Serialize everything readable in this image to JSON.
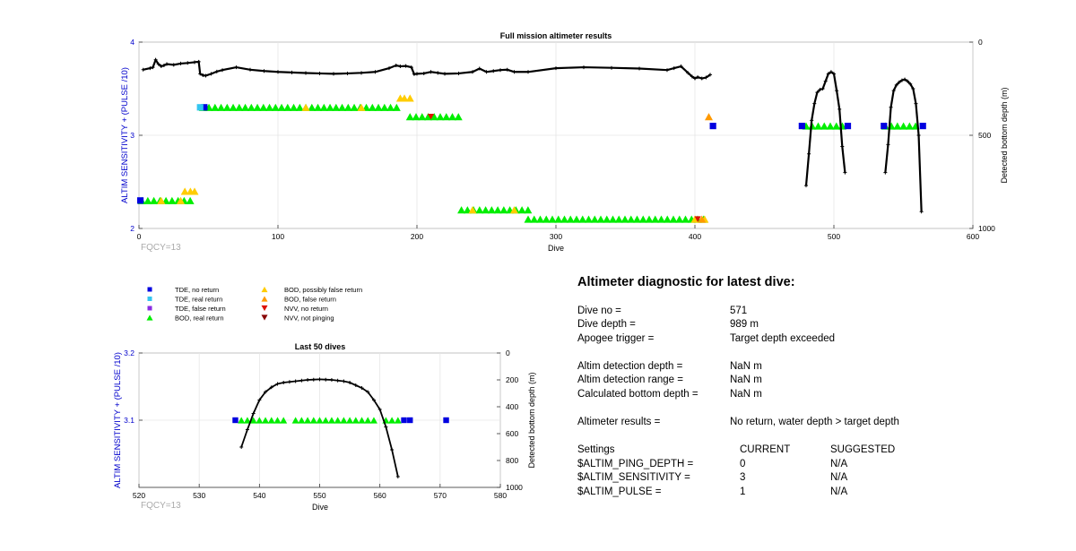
{
  "colors": {
    "axis_left": "#0000cc",
    "tde_no_return": "#0000e0",
    "tde_real_return": "#33c5f0",
    "tde_false_return": "#8a2be2",
    "bod_real_return": "#00ee00",
    "bod_possibly_false": "#ffcc00",
    "bod_false": "#ff9900",
    "nvv_no_return": "#dd1100",
    "nvv_not_pinging": "#880000",
    "depth_line": "#000000"
  },
  "legend": [
    {
      "label": "TDE, no return",
      "marker": "square",
      "color": "#0000e0"
    },
    {
      "label": "TDE, real return",
      "marker": "square",
      "color": "#33c5f0"
    },
    {
      "label": "TDE, false return",
      "marker": "square",
      "color": "#8a2be2"
    },
    {
      "label": "BOD, real return",
      "marker": "triangle-up",
      "color": "#00ee00"
    },
    {
      "label": "BOD, possibly false return",
      "marker": "triangle-up",
      "color": "#ffcc00"
    },
    {
      "label": "BOD, false return",
      "marker": "triangle-up",
      "color": "#ff9900"
    },
    {
      "label": "NVV, no return",
      "marker": "triangle-down",
      "color": "#dd1100"
    },
    {
      "label": "NVV, not pinging",
      "marker": "triangle-down",
      "color": "#880000"
    }
  ],
  "diagnostic": {
    "title": "Altimeter diagnostic for latest dive:",
    "rows1": [
      {
        "label": "Dive no =",
        "value": "571"
      },
      {
        "label": "Dive depth =",
        "value": "989 m"
      },
      {
        "label": "Apogee trigger =",
        "value": "Target depth exceeded"
      }
    ],
    "rows2": [
      {
        "label": "Altim detection depth =",
        "value": "NaN m"
      },
      {
        "label": "Altim detection range =",
        "value": "NaN m"
      },
      {
        "label": "Calculated bottom depth =",
        "value": "NaN m"
      }
    ],
    "results_label": "Altimeter results =",
    "results_value": "No return, water depth > target depth",
    "settings_header": {
      "label": "Settings",
      "current": "CURRENT",
      "suggested": "SUGGESTED"
    },
    "settings": [
      {
        "label": "$ALTIM_PING_DEPTH =",
        "current": "0",
        "suggested": "N/A"
      },
      {
        "label": "$ALTIM_SENSITIVITY =",
        "current": "3",
        "suggested": "N/A"
      },
      {
        "label": "$ALTIM_PULSE =",
        "current": "1",
        "suggested": "N/A"
      }
    ]
  },
  "chart_data": [
    {
      "type": "scatter",
      "title": "Full mission altimeter results",
      "xlabel": "Dive",
      "ylabel": "ALTIM SENSITIVITY + (PULSE /10)",
      "y2label": "Detected bottom depth (m)",
      "xlim": [
        0,
        600
      ],
      "ylim": [
        2,
        4
      ],
      "y2lim": [
        0,
        1000
      ],
      "y2_reversed": true,
      "x_ticks": [
        0,
        100,
        200,
        300,
        400,
        500,
        600
      ],
      "y_ticks": [
        2,
        3,
        4
      ],
      "y2_ticks": [
        0,
        500,
        1000
      ],
      "grid": true,
      "corner_note": "FQCY=13",
      "bod_real_segments": [
        {
          "x": [
            2,
            37
          ],
          "y": 2.3
        },
        {
          "x": [
            46,
            187
          ],
          "y": 3.3
        },
        {
          "x": [
            195,
            232
          ],
          "y": 3.2
        },
        {
          "x": [
            232,
            280
          ],
          "y": 2.2
        },
        {
          "x": [
            280,
            410
          ],
          "y": 2.1
        },
        {
          "x": [
            480,
            507
          ],
          "y": 3.1
        },
        {
          "x": [
            537,
            563
          ],
          "y": 3.1
        }
      ],
      "bod_possibly_false_points": [
        {
          "x": 33,
          "y": 2.4
        },
        {
          "x": 37,
          "y": 2.4
        },
        {
          "x": 40,
          "y": 2.4
        },
        {
          "x": 188,
          "y": 3.4
        },
        {
          "x": 191,
          "y": 3.4
        },
        {
          "x": 195,
          "y": 3.4
        },
        {
          "x": 16,
          "y": 2.3
        },
        {
          "x": 30,
          "y": 2.3
        },
        {
          "x": 120,
          "y": 3.3
        },
        {
          "x": 160,
          "y": 3.3
        },
        {
          "x": 240,
          "y": 2.2
        },
        {
          "x": 270,
          "y": 2.2
        },
        {
          "x": 400,
          "y": 2.1
        },
        {
          "x": 407,
          "y": 2.1
        }
      ],
      "bod_false_points": [
        {
          "x": 410,
          "y": 3.2
        },
        {
          "x": 405,
          "y": 2.1
        }
      ],
      "nvv_no_return_points": [
        {
          "x": 210,
          "y": 3.2
        },
        {
          "x": 402,
          "y": 2.1
        }
      ],
      "tde_no_return_points": [
        {
          "x": 1,
          "y": 2.3
        },
        {
          "x": 47,
          "y": 3.3
        },
        {
          "x": 413,
          "y": 3.1
        },
        {
          "x": 477,
          "y": 3.1
        },
        {
          "x": 510,
          "y": 3.1
        },
        {
          "x": 536,
          "y": 3.1
        },
        {
          "x": 564,
          "y": 3.1
        }
      ],
      "tde_real_return_points": [
        {
          "x": 44,
          "y": 3.3
        }
      ],
      "bottom_depth_series": [
        {
          "x": [
            3,
            8,
            10,
            12,
            14,
            16,
            18,
            20,
            25,
            30,
            35,
            40,
            43,
            44,
            46,
            48,
            52,
            56,
            60,
            70,
            80,
            90,
            100,
            110,
            120,
            130,
            140,
            150,
            160,
            170,
            180,
            185,
            188,
            192,
            196,
            198,
            200,
            205,
            210,
            215,
            220,
            230,
            240,
            245,
            250,
            255,
            260,
            265,
            270,
            280,
            300,
            320,
            340,
            360,
            380,
            385,
            390,
            395,
            398,
            400,
            402,
            405,
            408,
            411
          ],
          "y": [
            148,
            140,
            135,
            95,
            118,
            130,
            125,
            118,
            122,
            115,
            112,
            108,
            105,
            170,
            178,
            180,
            170,
            158,
            150,
            135,
            148,
            155,
            160,
            163,
            166,
            168,
            170,
            168,
            165,
            160,
            140,
            125,
            130,
            128,
            135,
            172,
            170,
            168,
            160,
            165,
            170,
            168,
            160,
            142,
            160,
            155,
            150,
            148,
            160,
            160,
            140,
            135,
            138,
            142,
            150,
            140,
            130,
            165,
            185,
            195,
            188,
            195,
            190,
            175
          ]
        },
        {
          "x": [
            480,
            482,
            484,
            486,
            488,
            490,
            492,
            494,
            496,
            498,
            500,
            502,
            504,
            506,
            508
          ],
          "y": [
            770,
            600,
            420,
            330,
            270,
            255,
            250,
            210,
            170,
            160,
            170,
            260,
            360,
            560,
            700
          ]
        },
        {
          "x": [
            537,
            539,
            541,
            543,
            545,
            547,
            549,
            551,
            553,
            555,
            557,
            559,
            561,
            563
          ],
          "y": [
            700,
            550,
            350,
            260,
            230,
            215,
            205,
            200,
            210,
            225,
            250,
            330,
            500,
            910
          ]
        }
      ]
    },
    {
      "type": "scatter",
      "title": "Last 50 dives",
      "xlabel": "Dive",
      "ylabel": "ALTIM SENSITIVITY + (PULSE /10)",
      "y2label": "Detected bottom depth (m)",
      "xlim": [
        520,
        580
      ],
      "ylim": [
        3.0,
        3.2
      ],
      "y2lim": [
        0,
        1000
      ],
      "y2_reversed": true,
      "x_ticks": [
        520,
        530,
        540,
        550,
        560,
        570,
        580
      ],
      "y_ticks": [
        3.1,
        3.2
      ],
      "y2_ticks": [
        0,
        200,
        400,
        600,
        800,
        1000
      ],
      "grid": true,
      "corner_note": "FQCY=13",
      "tde_no_return_points": [
        {
          "x": 536,
          "y": 3.1
        },
        {
          "x": 564,
          "y": 3.1
        },
        {
          "x": 565,
          "y": 3.1
        },
        {
          "x": 571,
          "y": 3.1
        }
      ],
      "bod_real_points": [
        {
          "x": 537,
          "y": 3.1
        },
        {
          "x": 538,
          "y": 3.1
        },
        {
          "x": 539,
          "y": 3.1
        },
        {
          "x": 540,
          "y": 3.1
        },
        {
          "x": 541,
          "y": 3.1
        },
        {
          "x": 542,
          "y": 3.1
        },
        {
          "x": 543,
          "y": 3.1
        },
        {
          "x": 544,
          "y": 3.1
        },
        {
          "x": 546,
          "y": 3.1
        },
        {
          "x": 547,
          "y": 3.1
        },
        {
          "x": 548,
          "y": 3.1
        },
        {
          "x": 549,
          "y": 3.1
        },
        {
          "x": 550,
          "y": 3.1
        },
        {
          "x": 551,
          "y": 3.1
        },
        {
          "x": 552,
          "y": 3.1
        },
        {
          "x": 553,
          "y": 3.1
        },
        {
          "x": 554,
          "y": 3.1
        },
        {
          "x": 555,
          "y": 3.1
        },
        {
          "x": 556,
          "y": 3.1
        },
        {
          "x": 557,
          "y": 3.1
        },
        {
          "x": 558,
          "y": 3.1
        },
        {
          "x": 559,
          "y": 3.1
        },
        {
          "x": 561,
          "y": 3.1
        },
        {
          "x": 562,
          "y": 3.1
        },
        {
          "x": 563,
          "y": 3.1
        }
      ],
      "bottom_depth_series": [
        {
          "x": [
            537,
            538,
            539,
            540,
            541,
            542,
            543,
            544,
            545,
            546,
            547,
            548,
            549,
            550,
            551,
            552,
            553,
            554,
            555,
            556,
            557,
            558,
            559,
            560,
            561,
            562,
            563
          ],
          "y": [
            700,
            570,
            450,
            350,
            290,
            255,
            230,
            220,
            215,
            210,
            205,
            200,
            198,
            196,
            198,
            200,
            205,
            210,
            220,
            240,
            260,
            290,
            350,
            420,
            550,
            720,
            920
          ]
        }
      ]
    }
  ]
}
